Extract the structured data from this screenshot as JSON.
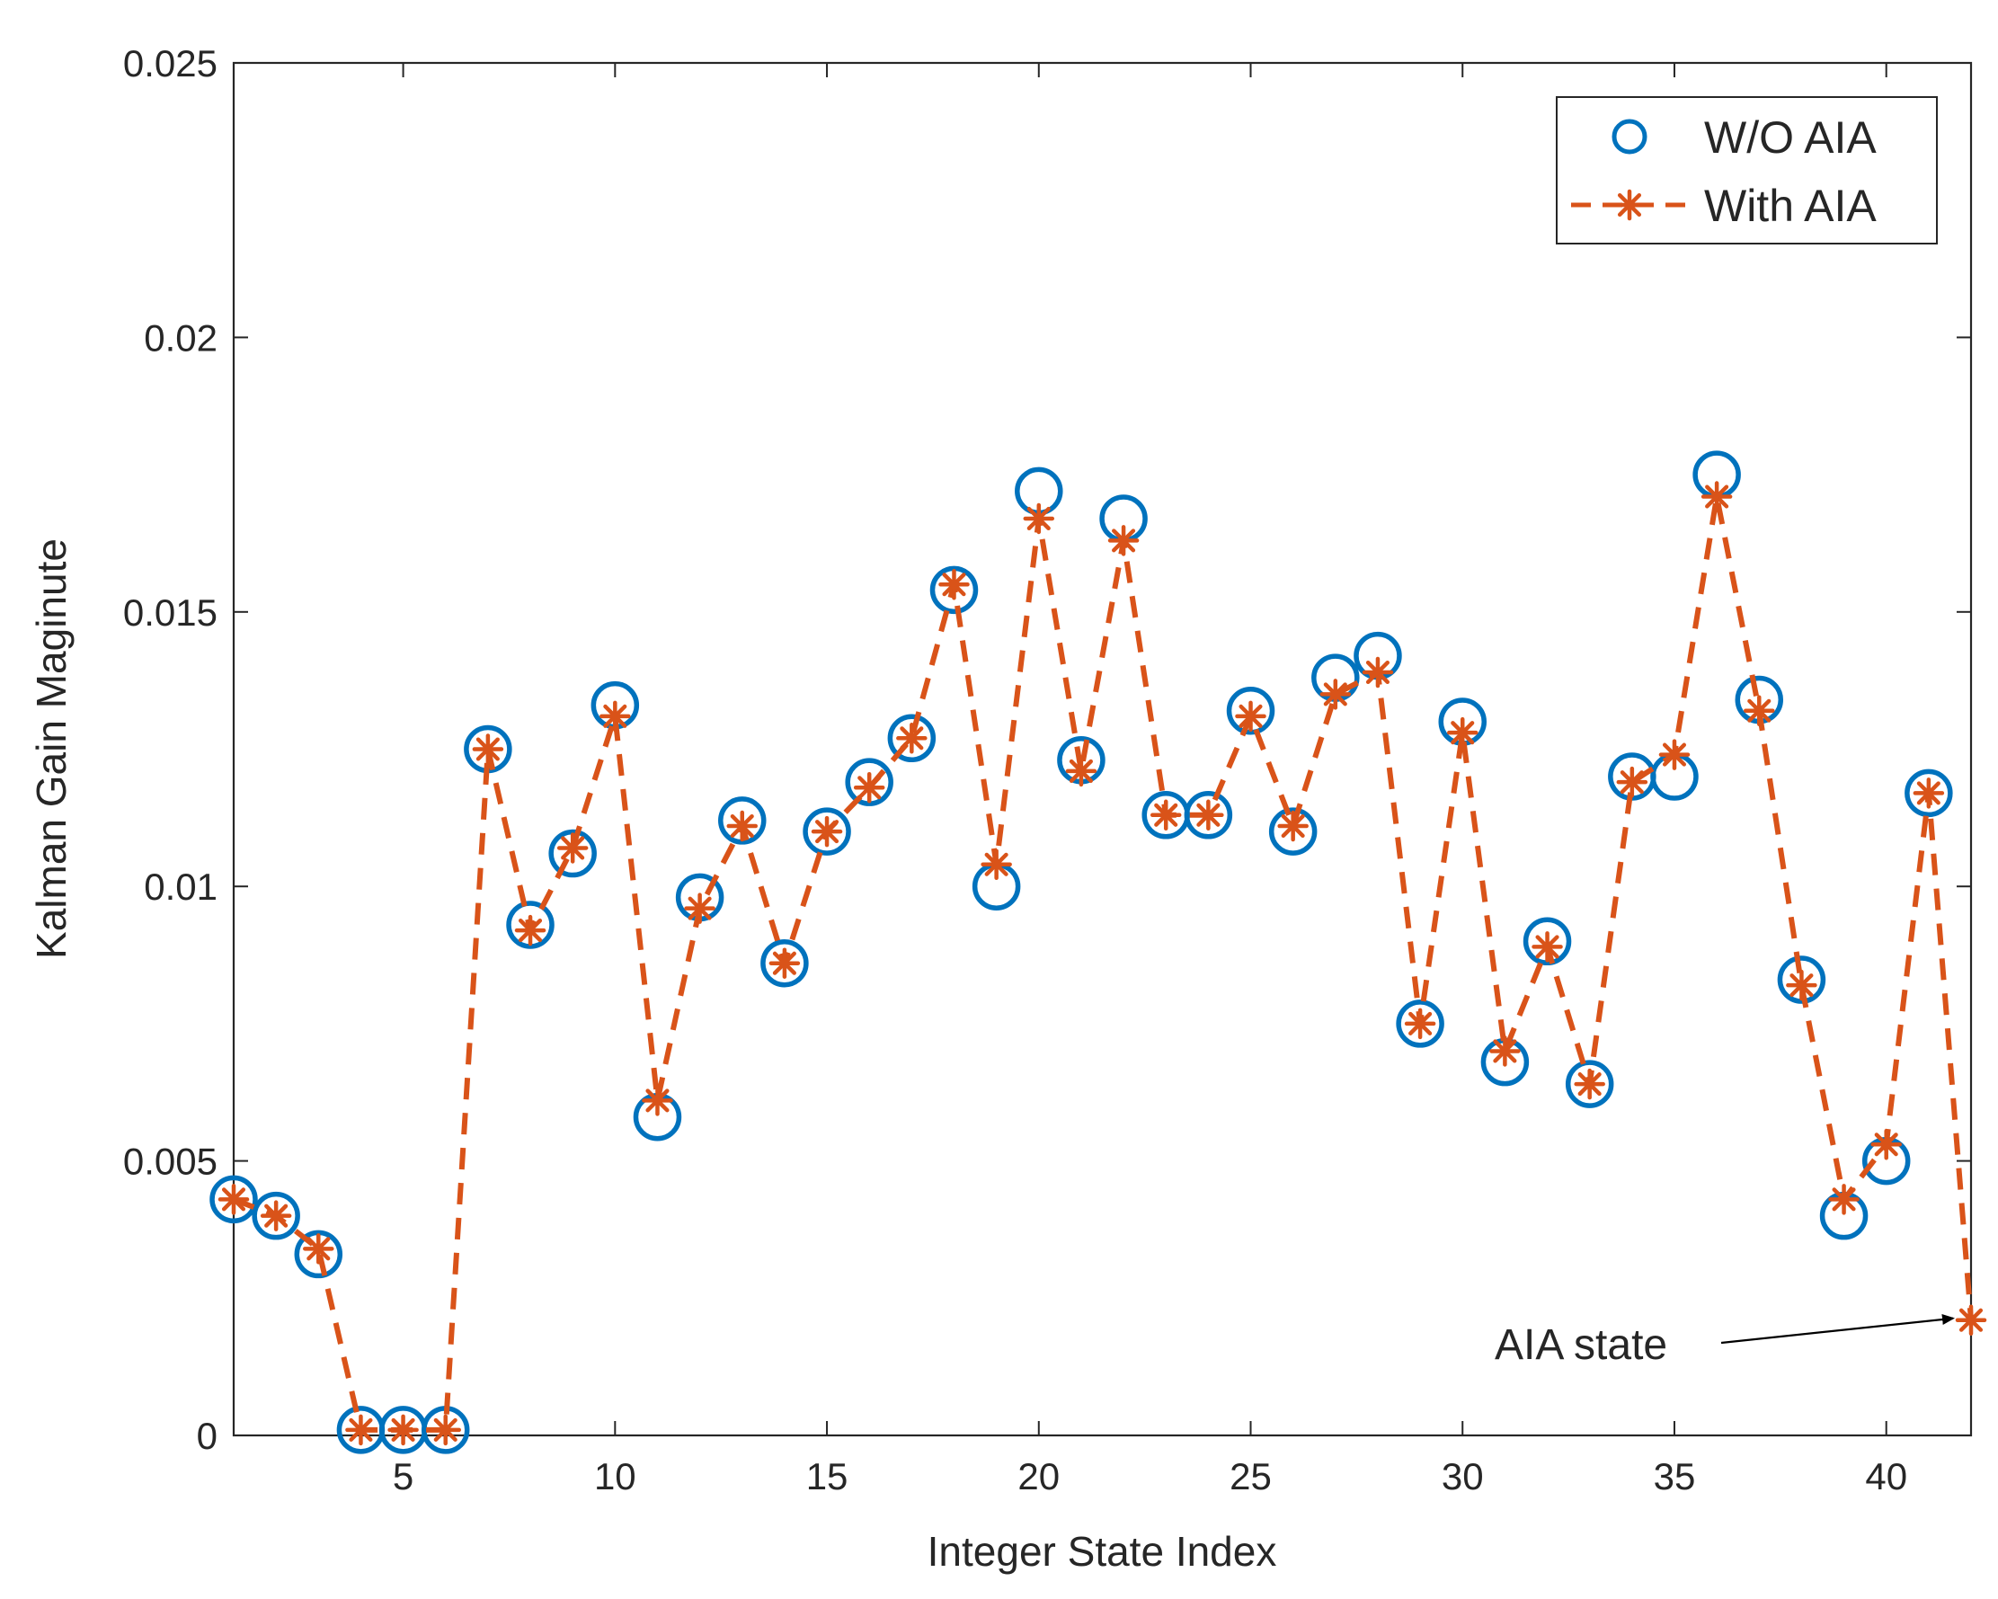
{
  "chart_data": {
    "type": "line",
    "title": "",
    "xlabel": "Integer State Index",
    "ylabel": "Kalman Gain Maginute",
    "xlim": [
      1,
      42
    ],
    "ylim": [
      0,
      0.025
    ],
    "xticks": [
      5,
      10,
      15,
      20,
      25,
      30,
      35,
      40
    ],
    "xtick_labels": [
      "5",
      "10",
      "15",
      "20",
      "25",
      "30",
      "35",
      "40"
    ],
    "yticks": [
      0,
      0.005,
      0.01,
      0.015,
      0.02,
      0.025
    ],
    "ytick_labels": [
      "0",
      "0.005",
      "0.01",
      "0.015",
      "0.02",
      "0.025"
    ],
    "grid": false,
    "legend_position": "top-right",
    "series": [
      {
        "name": "W/O AIA",
        "style": "circle markers, no line",
        "color": "#0072BD",
        "x": [
          1,
          2,
          3,
          4,
          5,
          6,
          7,
          8,
          9,
          10,
          11,
          12,
          13,
          14,
          15,
          16,
          17,
          18,
          19,
          20,
          21,
          22,
          23,
          24,
          25,
          26,
          27,
          28,
          29,
          30,
          31,
          32,
          33,
          34,
          35,
          36,
          37,
          38,
          39,
          40,
          41
        ],
        "values": [
          0.0043,
          0.004,
          0.0033,
          0.0001,
          0.0001,
          0.0001,
          0.0125,
          0.0093,
          0.0106,
          0.0133,
          0.0058,
          0.0098,
          0.0112,
          0.0086,
          0.011,
          0.0119,
          0.0127,
          0.0154,
          0.01,
          0.0172,
          0.0123,
          0.0167,
          0.0113,
          0.0113,
          0.0132,
          0.011,
          0.0138,
          0.0142,
          0.0075,
          0.013,
          0.0068,
          0.009,
          0.0064,
          0.012,
          0.012,
          0.0175,
          0.0134,
          0.0083,
          0.004,
          0.005,
          0.0117
        ]
      },
      {
        "name": "With AIA",
        "style": "dashed line with asterisk markers",
        "color": "#D95319",
        "x": [
          1,
          2,
          3,
          4,
          5,
          6,
          7,
          8,
          9,
          10,
          11,
          12,
          13,
          14,
          15,
          16,
          17,
          18,
          19,
          20,
          21,
          22,
          23,
          24,
          25,
          26,
          27,
          28,
          29,
          30,
          31,
          32,
          33,
          34,
          35,
          36,
          37,
          38,
          39,
          40,
          41,
          42
        ],
        "values": [
          0.0043,
          0.004,
          0.0034,
          0.0001,
          0.0001,
          0.0001,
          0.0125,
          0.0092,
          0.0107,
          0.0131,
          0.0061,
          0.0096,
          0.0111,
          0.0086,
          0.011,
          0.0118,
          0.0127,
          0.0155,
          0.0104,
          0.0167,
          0.0121,
          0.0163,
          0.0113,
          0.0113,
          0.0131,
          0.0111,
          0.0135,
          0.0139,
          0.0075,
          0.0128,
          0.007,
          0.0089,
          0.0064,
          0.0119,
          0.0124,
          0.0171,
          0.0132,
          0.0082,
          0.0043,
          0.0053,
          0.0117,
          0.0021
        ]
      }
    ],
    "annotations": [
      {
        "text": "AIA state",
        "arrow_to": {
          "x": 42,
          "y": 0.0021
        }
      }
    ]
  }
}
